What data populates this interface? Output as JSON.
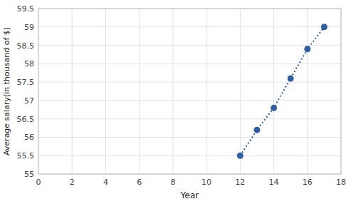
{
  "chart_data": {
    "type": "line",
    "x": [
      12,
      13,
      14,
      15,
      16,
      17
    ],
    "values": [
      55.5,
      56.2,
      56.8,
      57.6,
      58.4,
      59.0
    ],
    "color": "#2e5fa3",
    "marker": "circle",
    "line_style": "dotted",
    "xlim": [
      0,
      18
    ],
    "ylim": [
      55,
      59.5
    ],
    "xticks": [
      0,
      2,
      4,
      6,
      8,
      10,
      12,
      14,
      16,
      18
    ],
    "yticks": [
      55,
      55.5,
      56,
      56.5,
      57,
      57.5,
      58,
      58.5,
      59,
      59.5
    ],
    "xlabel": "Year",
    "ylabel": "Average salary(in thousand of $)",
    "grid": true
  }
}
